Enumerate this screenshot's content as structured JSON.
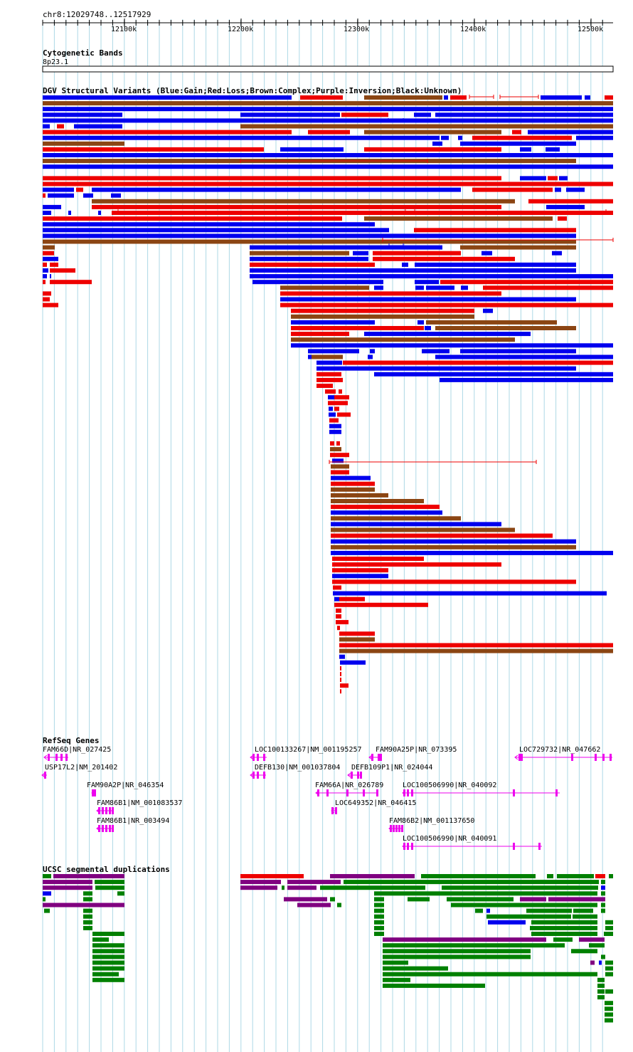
{
  "region": "chr8:12029748..12517929",
  "ruler": {
    "ticks": [
      "12100k",
      "12200k",
      "12300k",
      "12400k",
      "12500k"
    ]
  },
  "tracks": {
    "cytoband": {
      "title": "Cytogenetic Bands",
      "band": "8p23.1"
    },
    "dgv": {
      "title": "DGV Structural Variants (Blue:Gain;Red:Loss;Brown:Complex;Purple:Inversion;Black:Unknown)"
    },
    "refseq": {
      "title": "RefSeq Genes",
      "genes": [
        "FAM66D|NR_027425",
        "USP17L2|NM_201402",
        "FAM90A2P|NR_046354",
        "FAM86B1|NM_001083537",
        "FAM86B1|NR_003494",
        "LOC100133267|NM_001195257",
        "DEFB130|NM_001037804",
        "FAM66A|NR_026789",
        "LOC649352|NR_046415",
        "FAM90A25P|NR_073395",
        "DEFB109P1|NR_024044",
        "LOC100506990|NR_040092",
        "FAM86B2|NM_001137650",
        "LOC100506990|NR_040091",
        "LOC729732|NR_047662"
      ]
    },
    "segdup": {
      "title": "UCSC segmental duplications"
    }
  },
  "colors": {
    "gain": "#0000ee",
    "loss": "#ee0000",
    "complex": "#8b4513",
    "inversion": "#800080",
    "gene": "#ee00ee",
    "segdup_green": "#008000",
    "segdup_red": "#ee0000",
    "segdup_purple": "#800080",
    "gridline": "#add8e6"
  }
}
